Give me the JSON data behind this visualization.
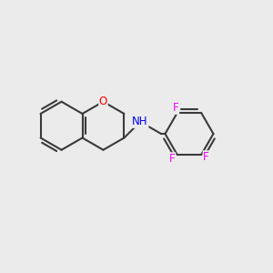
{
  "background_color": "#EBEBEB",
  "bond_color": "#3a3a3a",
  "bond_width": 1.5,
  "atom_colors": {
    "N": "#0000FF",
    "O": "#FF0000",
    "F": "#FF00FF",
    "C": "#3a3a3a"
  },
  "font_size_atom": 8.5,
  "fig_width": 3.0,
  "fig_height": 3.0,
  "dpi": 100,
  "xlim": [
    0,
    10
  ],
  "ylim": [
    0,
    10
  ]
}
